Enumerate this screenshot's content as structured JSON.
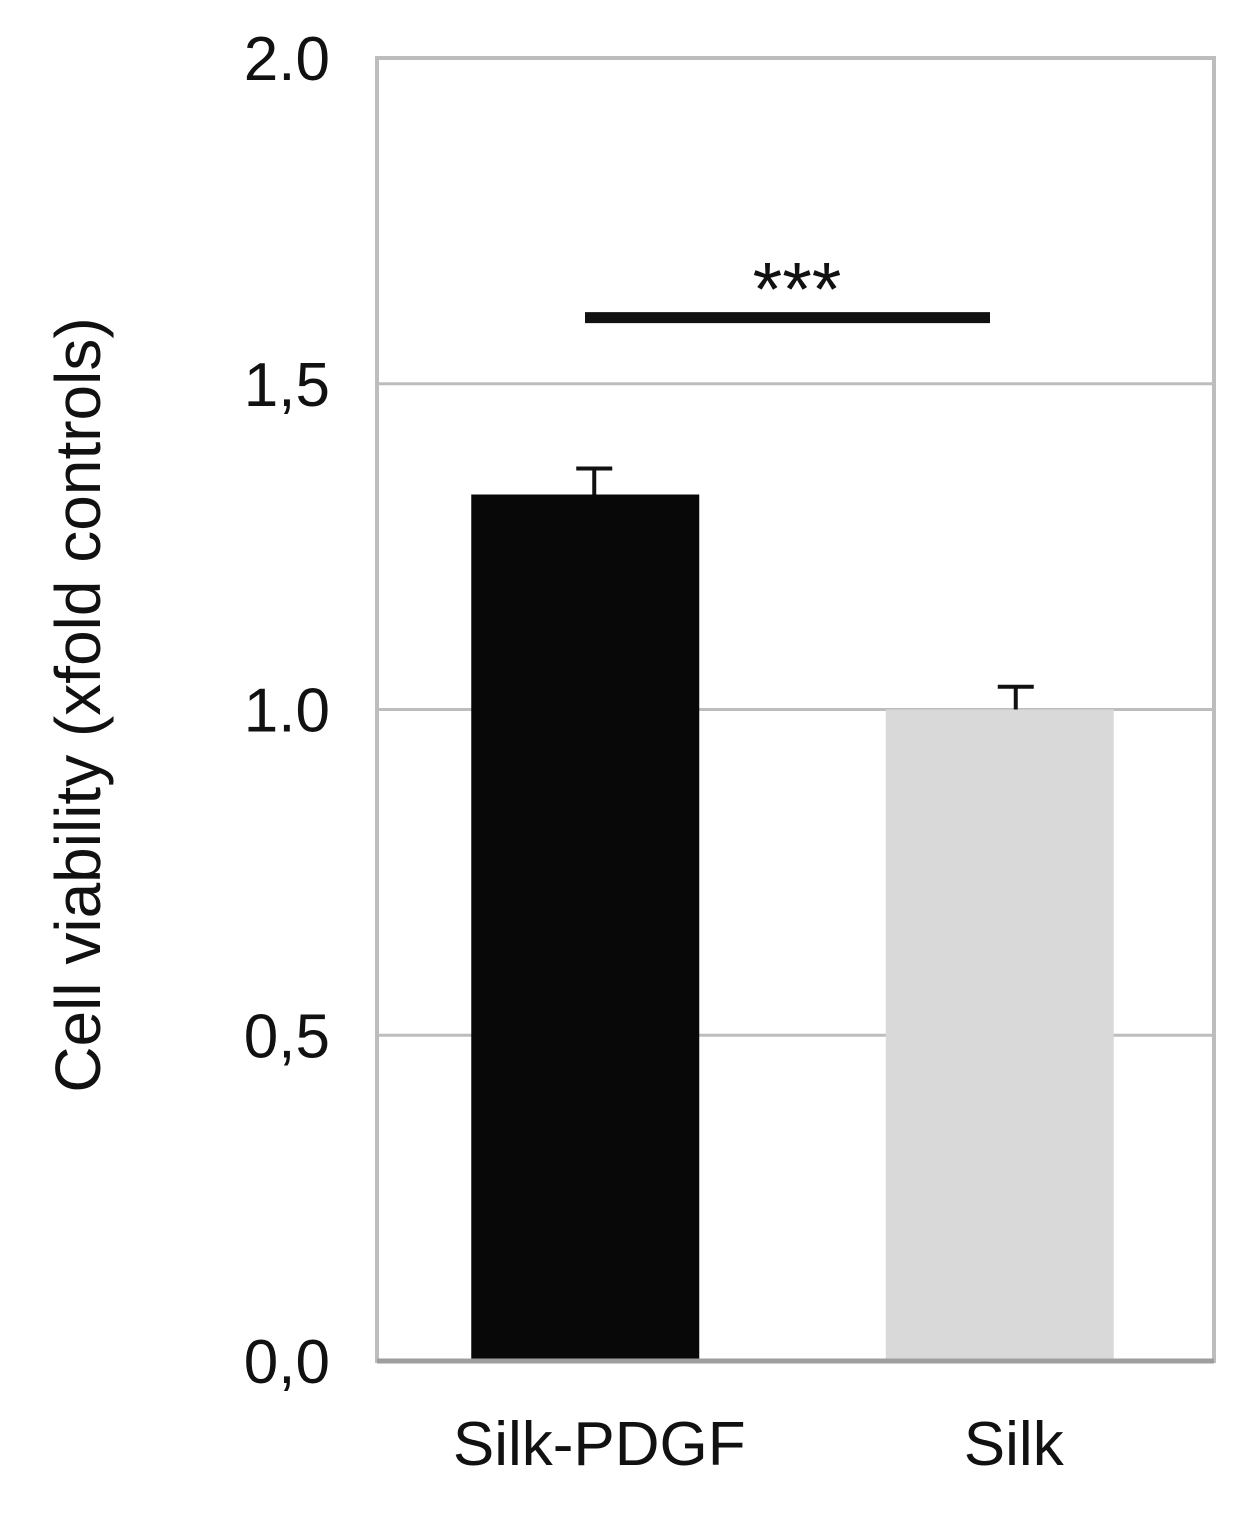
{
  "chart_data": {
    "type": "bar",
    "title": "",
    "xlabel": "",
    "ylabel": "Cell viability (xfold controls)",
    "ylim": [
      0,
      2.0
    ],
    "yticks": [
      0,
      0.5,
      1.0,
      1.5,
      2.0
    ],
    "ytick_labels": [
      "0,0",
      "0,5",
      "1.0",
      "1,5",
      "2.0"
    ],
    "grid": true,
    "legend": "none",
    "categories": [
      "Silk-PDGF",
      "Silk"
    ],
    "series": [
      {
        "values": [
          1.33,
          1.0
        ],
        "errors": [
          0.04,
          0.035
        ],
        "colors": [
          "#080808",
          "#d9d9d9"
        ]
      }
    ],
    "annotations": [
      {
        "text": "***",
        "type": "significance-bracket",
        "from": "Silk-PDGF",
        "to": "Silk",
        "y": 1.6
      }
    ]
  }
}
